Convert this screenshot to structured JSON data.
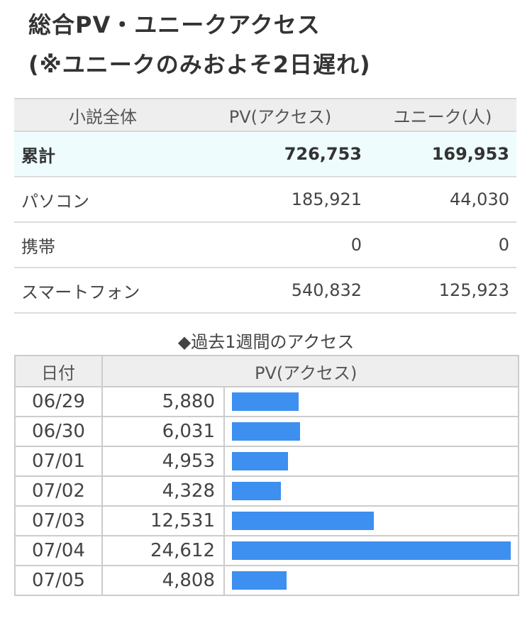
{
  "title": {
    "line1": "総合PV・ユニークアクセス",
    "line2": "(※ユニークのみおよそ2日遅れ)"
  },
  "summary": {
    "headers": [
      "小説全体",
      "PV(アクセス)",
      "ユニーク(人)"
    ],
    "rows": [
      {
        "label": "累計",
        "pv": "726,753",
        "unique": "169,953"
      },
      {
        "label": "パソコン",
        "pv": "185,921",
        "unique": "44,030"
      },
      {
        "label": "携帯",
        "pv": "0",
        "unique": "0"
      },
      {
        "label": "スマートフォン",
        "pv": "540,832",
        "unique": "125,923"
      }
    ]
  },
  "weekly": {
    "caption": "◆過去1週間のアクセス",
    "headers": {
      "date": "日付",
      "pv": "PV(アクセス)"
    },
    "bar_color": "#3d8ff0",
    "rows": [
      {
        "date": "06/29",
        "pv": "5,880",
        "value": 5880
      },
      {
        "date": "06/30",
        "pv": "6,031",
        "value": 6031
      },
      {
        "date": "07/01",
        "pv": "4,953",
        "value": 4953
      },
      {
        "date": "07/02",
        "pv": "4,328",
        "value": 4328
      },
      {
        "date": "07/03",
        "pv": "12,531",
        "value": 12531
      },
      {
        "date": "07/04",
        "pv": "24,612",
        "value": 24612
      },
      {
        "date": "07/05",
        "pv": "4,808",
        "value": 4808
      }
    ]
  }
}
